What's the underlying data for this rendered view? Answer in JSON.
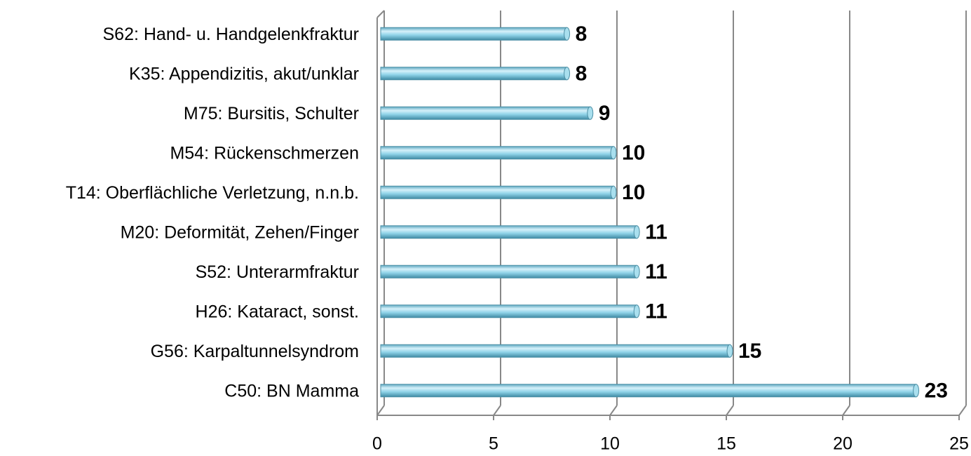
{
  "chart_data": {
    "type": "bar",
    "orientation": "horizontal",
    "categories": [
      "S62: Hand- u. Handgelenkfraktur",
      "K35: Appendizitis, akut/unklar",
      "M75: Bursitis, Schulter",
      "M54: Rückenschmerzen",
      "T14: Oberflächliche Verletzung, n.n.b.",
      "M20: Deformität, Zehen/Finger",
      "S52: Unterarmfraktur",
      "H26: Kataract, sonst.",
      "G56: Karpaltunnelsyndrom",
      "C50: BN Mamma"
    ],
    "values": [
      8,
      8,
      9,
      10,
      10,
      11,
      11,
      11,
      15,
      23
    ],
    "color": "#8fd3e8",
    "xlim": [
      0,
      25
    ],
    "xticks": [
      0,
      5,
      10,
      15,
      20,
      25
    ],
    "grid": true
  }
}
